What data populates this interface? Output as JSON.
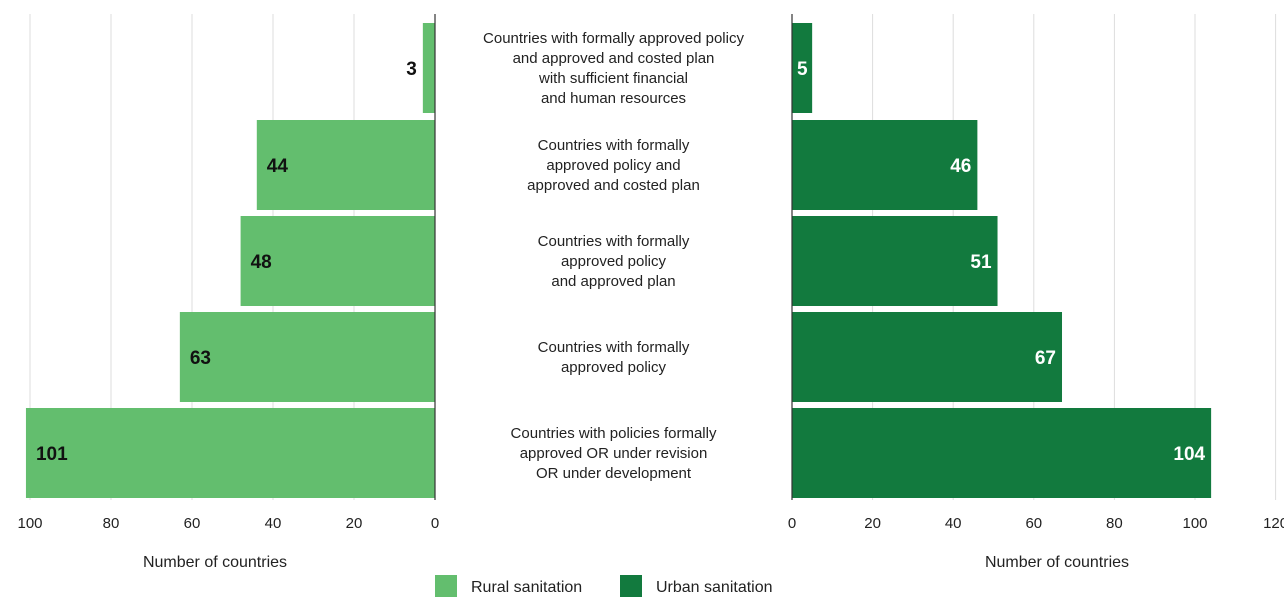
{
  "chart_data": {
    "type": "bar",
    "orientation": "horizontal",
    "layout": "butterfly",
    "categories": [
      [
        "Countries with formally approved policy",
        "and approved and costed plan",
        "with sufficient financial",
        "and human resources"
      ],
      [
        "Countries with formally",
        "approved policy and",
        "approved and costed plan"
      ],
      [
        "Countries with formally",
        "approved policy",
        "and approved plan"
      ],
      [
        "Countries with formally",
        "approved policy"
      ],
      [
        "Countries with policies formally",
        "approved OR under revision",
        "OR under development"
      ]
    ],
    "series": [
      {
        "name": "Rural sanitation",
        "values": [
          3,
          44,
          48,
          63,
          101
        ],
        "color": "#63be6e",
        "label_color": "#111111"
      },
      {
        "name": "Urban sanitation",
        "values": [
          5,
          46,
          51,
          67,
          104
        ],
        "color": "#127a3e",
        "label_color": "#ffffff"
      }
    ],
    "left_axis": {
      "xlabel": "Number of countries",
      "xlim": [
        0,
        100
      ],
      "ticks": [
        100,
        80,
        60,
        40,
        20,
        0
      ],
      "reversed": true
    },
    "right_axis": {
      "xlabel": "Number of countries",
      "xlim": [
        0,
        120
      ],
      "ticks": [
        0,
        20,
        40,
        60,
        80,
        100,
        120
      ]
    },
    "grid": true,
    "legend_position": "bottom-center",
    "colors": {
      "grid": "#dddddd",
      "axis": "#333333"
    }
  }
}
